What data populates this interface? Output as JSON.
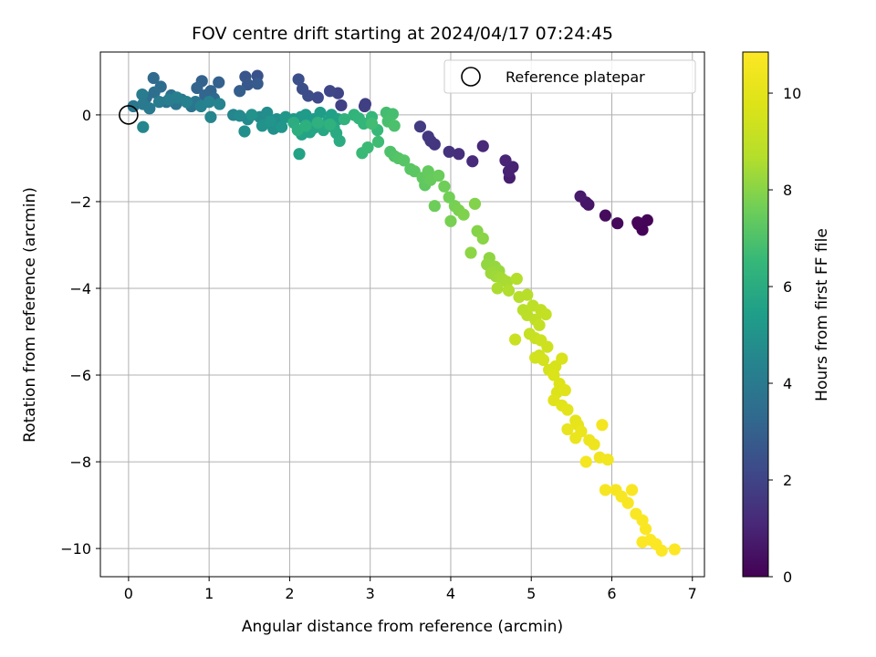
{
  "chart_data": {
    "type": "scatter",
    "title": "FOV centre drift starting at 2024/04/17 07:24:45",
    "xlabel": "Angular distance from reference (arcmin)",
    "ylabel": "Rotation from reference (arcmin)",
    "xlim": [
      -0.35,
      7.15
    ],
    "ylim": [
      -10.65,
      1.45
    ],
    "xticks": [
      0,
      1,
      2,
      3,
      4,
      5,
      6,
      7
    ],
    "yticks": [
      0,
      -2,
      -4,
      -6,
      -8,
      -10
    ],
    "grid": true,
    "legend": {
      "position": "top-right",
      "entries": [
        "Reference platepar"
      ]
    },
    "reference_point": {
      "x": 0,
      "y": 0
    },
    "colorbar": {
      "label": "Hours from first FF file",
      "range": [
        0,
        10.85
      ],
      "ticks": [
        0,
        2,
        4,
        6,
        8,
        10
      ],
      "colormap": "viridis"
    },
    "series": [
      {
        "points": [
          [
            6.33,
            -2.52,
            0.0
          ],
          [
            6.38,
            -2.65,
            0.05
          ],
          [
            6.44,
            -2.43,
            0.1
          ],
          [
            6.32,
            -2.48,
            0.15
          ],
          [
            6.07,
            -2.5,
            0.2
          ],
          [
            5.92,
            -2.32,
            0.3
          ],
          [
            5.71,
            -2.07,
            0.5
          ],
          [
            5.68,
            -2.02,
            0.6
          ],
          [
            5.61,
            -1.88,
            0.7
          ],
          [
            4.73,
            -1.45,
            0.8
          ],
          [
            4.77,
            -1.2,
            0.9
          ],
          [
            4.72,
            -1.3,
            0.95
          ],
          [
            4.68,
            -1.05,
            1.0
          ],
          [
            4.4,
            -0.72,
            1.1
          ],
          [
            4.27,
            -1.07,
            1.2
          ],
          [
            4.1,
            -0.9,
            1.3
          ],
          [
            3.98,
            -0.85,
            1.4
          ],
          [
            3.8,
            -0.68,
            1.5
          ],
          [
            3.75,
            -0.6,
            1.55
          ],
          [
            3.72,
            -0.5,
            1.6
          ],
          [
            3.62,
            -0.27,
            1.7
          ],
          [
            2.94,
            0.25,
            1.8
          ],
          [
            2.93,
            0.2,
            1.85
          ],
          [
            2.64,
            0.22,
            1.9
          ],
          [
            2.6,
            0.5,
            2.0
          ],
          [
            2.5,
            0.55,
            2.1
          ],
          [
            2.35,
            0.4,
            2.2
          ],
          [
            2.23,
            0.44,
            2.3
          ],
          [
            2.16,
            0.6,
            2.35
          ],
          [
            2.11,
            0.82,
            2.4
          ],
          [
            1.6,
            0.9,
            2.5
          ],
          [
            1.45,
            0.88,
            2.6
          ],
          [
            1.48,
            0.7,
            2.7
          ],
          [
            1.6,
            0.72,
            2.8
          ],
          [
            1.38,
            0.55,
            2.9
          ],
          [
            1.12,
            0.75,
            3.0
          ],
          [
            0.91,
            0.78,
            3.05
          ],
          [
            0.85,
            0.62,
            3.1
          ],
          [
            1.02,
            0.55,
            3.15
          ],
          [
            0.95,
            0.45,
            3.2
          ],
          [
            1.06,
            0.38,
            3.3
          ],
          [
            0.31,
            0.85,
            3.4
          ],
          [
            0.4,
            0.65,
            3.45
          ],
          [
            0.22,
            0.4,
            3.5
          ],
          [
            0.32,
            0.52,
            3.55
          ],
          [
            0.47,
            0.3,
            3.6
          ],
          [
            0.53,
            0.45,
            3.65
          ],
          [
            0.59,
            0.25,
            3.7
          ],
          [
            0.66,
            0.35,
            3.75
          ],
          [
            0.78,
            0.2,
            3.8
          ],
          [
            0.83,
            0.3,
            3.85
          ],
          [
            0.06,
            0.2,
            3.9
          ],
          [
            0.18,
            0.25,
            3.95
          ],
          [
            0.26,
            0.15,
            4.0
          ],
          [
            0.38,
            0.3,
            4.05
          ],
          [
            0.17,
            0.47,
            4.1
          ],
          [
            0.5,
            0.35,
            4.15
          ],
          [
            0.6,
            0.4,
            4.2
          ],
          [
            0.72,
            0.3,
            4.25
          ],
          [
            0.9,
            0.2,
            4.3
          ],
          [
            1.0,
            0.3,
            4.35
          ],
          [
            1.13,
            0.25,
            4.4
          ],
          [
            1.02,
            -0.05,
            4.45
          ],
          [
            1.3,
            0.0,
            4.5
          ],
          [
            0.18,
            -0.28,
            4.55
          ],
          [
            1.48,
            -0.1,
            4.6
          ],
          [
            1.38,
            -0.02,
            4.65
          ],
          [
            1.63,
            -0.05,
            4.7
          ],
          [
            1.72,
            0.05,
            4.75
          ],
          [
            1.84,
            -0.1,
            4.8
          ],
          [
            1.44,
            -0.38,
            4.85
          ],
          [
            1.8,
            -0.32,
            4.9
          ],
          [
            1.53,
            0.0,
            4.95
          ],
          [
            1.66,
            -0.25,
            5.0
          ],
          [
            1.76,
            -0.15,
            5.05
          ],
          [
            1.9,
            -0.28,
            5.1
          ],
          [
            1.95,
            -0.05,
            5.15
          ],
          [
            2.05,
            -0.1,
            5.2
          ],
          [
            2.14,
            -0.05,
            5.25
          ],
          [
            2.2,
            0.0,
            5.3
          ],
          [
            2.3,
            -0.1,
            5.35
          ],
          [
            2.38,
            0.05,
            5.4
          ],
          [
            2.48,
            -0.15,
            5.45
          ],
          [
            2.52,
            0.0,
            5.5
          ],
          [
            2.6,
            -0.1,
            5.55
          ],
          [
            2.12,
            -0.9,
            5.6
          ],
          [
            2.15,
            -0.45,
            5.65
          ],
          [
            2.25,
            -0.4,
            5.7
          ],
          [
            2.3,
            -0.3,
            5.75
          ],
          [
            2.42,
            -0.35,
            5.8
          ],
          [
            2.45,
            -0.25,
            5.85
          ],
          [
            2.55,
            -0.3,
            5.9
          ],
          [
            2.58,
            -0.42,
            5.95
          ],
          [
            2.62,
            -0.6,
            6.0
          ],
          [
            2.05,
            -0.18,
            6.05
          ],
          [
            2.1,
            -0.35,
            6.1
          ],
          [
            2.2,
            -0.25,
            6.15
          ],
          [
            2.35,
            -0.18,
            6.2
          ],
          [
            2.5,
            -0.22,
            6.25
          ],
          [
            2.68,
            -0.1,
            6.3
          ],
          [
            2.8,
            0.0,
            6.35
          ],
          [
            2.86,
            -0.08,
            6.4
          ],
          [
            2.92,
            -0.2,
            6.45
          ],
          [
            3.02,
            -0.05,
            6.5
          ],
          [
            3.09,
            -0.35,
            6.55
          ],
          [
            2.9,
            -0.88,
            6.6
          ],
          [
            2.97,
            -0.75,
            6.65
          ],
          [
            3.1,
            -0.62,
            6.7
          ],
          [
            3.02,
            -0.2,
            6.75
          ],
          [
            3.2,
            0.05,
            6.8
          ],
          [
            3.28,
            0.02,
            6.85
          ],
          [
            3.22,
            -0.15,
            6.9
          ],
          [
            3.3,
            -0.25,
            6.95
          ],
          [
            3.25,
            -0.85,
            7.0
          ],
          [
            3.3,
            -0.95,
            7.05
          ],
          [
            3.35,
            -1.0,
            7.1
          ],
          [
            3.42,
            -1.05,
            7.15
          ],
          [
            3.5,
            -1.25,
            7.2
          ],
          [
            3.55,
            -1.3,
            7.25
          ],
          [
            3.68,
            -1.62,
            7.3
          ],
          [
            3.65,
            -1.45,
            7.35
          ],
          [
            3.72,
            -1.3,
            7.4
          ],
          [
            3.75,
            -1.5,
            7.45
          ],
          [
            3.85,
            -1.4,
            7.5
          ],
          [
            3.8,
            -2.1,
            7.55
          ],
          [
            3.92,
            -1.65,
            7.6
          ],
          [
            3.98,
            -1.9,
            7.65
          ],
          [
            4.05,
            -2.1,
            7.7
          ],
          [
            4.0,
            -2.45,
            7.75
          ],
          [
            4.1,
            -2.2,
            7.8
          ],
          [
            4.16,
            -2.3,
            7.85
          ],
          [
            4.3,
            -2.05,
            7.9
          ],
          [
            4.33,
            -2.68,
            7.95
          ],
          [
            4.4,
            -2.85,
            8.0
          ],
          [
            4.25,
            -3.18,
            8.05
          ],
          [
            4.48,
            -3.3,
            8.1
          ],
          [
            4.45,
            -3.45,
            8.15
          ],
          [
            4.55,
            -3.5,
            8.2
          ],
          [
            4.6,
            -3.6,
            8.25
          ],
          [
            4.5,
            -3.65,
            8.3
          ],
          [
            4.56,
            -3.72,
            8.35
          ],
          [
            4.62,
            -3.75,
            8.4
          ],
          [
            4.65,
            -3.8,
            8.45
          ],
          [
            4.7,
            -3.85,
            8.5
          ],
          [
            4.58,
            -4.0,
            8.55
          ],
          [
            4.72,
            -4.05,
            8.6
          ],
          [
            4.82,
            -3.78,
            8.65
          ],
          [
            4.85,
            -4.2,
            8.7
          ],
          [
            4.95,
            -4.15,
            8.75
          ],
          [
            4.9,
            -4.5,
            8.8
          ],
          [
            4.95,
            -4.62,
            8.85
          ],
          [
            5.02,
            -4.4,
            8.9
          ],
          [
            5.05,
            -4.72,
            8.95
          ],
          [
            5.12,
            -4.5,
            9.0
          ],
          [
            5.1,
            -4.85,
            9.05
          ],
          [
            5.18,
            -4.6,
            9.1
          ],
          [
            4.98,
            -5.05,
            9.15
          ],
          [
            5.05,
            -5.15,
            9.2
          ],
          [
            4.8,
            -5.18,
            9.25
          ],
          [
            5.12,
            -5.2,
            9.3
          ],
          [
            5.2,
            -5.35,
            9.35
          ],
          [
            5.1,
            -5.55,
            9.4
          ],
          [
            5.05,
            -5.6,
            9.45
          ],
          [
            5.15,
            -5.65,
            9.5
          ],
          [
            5.22,
            -5.88,
            9.55
          ],
          [
            5.3,
            -5.8,
            9.6
          ],
          [
            5.38,
            -5.62,
            9.65
          ],
          [
            5.28,
            -6.0,
            9.7
          ],
          [
            5.32,
            -6.4,
            9.75
          ],
          [
            5.35,
            -6.2,
            9.8
          ],
          [
            5.42,
            -6.35,
            9.85
          ],
          [
            5.28,
            -6.58,
            9.9
          ],
          [
            5.38,
            -6.7,
            9.95
          ],
          [
            5.45,
            -6.8,
            10.0
          ],
          [
            5.55,
            -7.05,
            10.05
          ],
          [
            5.58,
            -7.15,
            10.1
          ],
          [
            5.45,
            -7.25,
            10.15
          ],
          [
            5.62,
            -7.3,
            10.2
          ],
          [
            5.55,
            -7.45,
            10.25
          ],
          [
            5.72,
            -7.5,
            10.3
          ],
          [
            5.78,
            -7.6,
            10.35
          ],
          [
            5.85,
            -7.9,
            10.4
          ],
          [
            5.95,
            -7.95,
            10.45
          ],
          [
            5.88,
            -7.15,
            10.5
          ],
          [
            5.68,
            -8.0,
            10.55
          ],
          [
            5.92,
            -8.65,
            10.6
          ],
          [
            6.05,
            -8.65,
            10.62
          ],
          [
            6.12,
            -8.8,
            10.65
          ],
          [
            6.2,
            -8.95,
            10.67
          ],
          [
            6.25,
            -8.65,
            10.7
          ],
          [
            6.3,
            -9.2,
            10.72
          ],
          [
            6.38,
            -9.35,
            10.74
          ],
          [
            6.42,
            -9.55,
            10.76
          ],
          [
            6.38,
            -9.85,
            10.78
          ],
          [
            6.48,
            -9.8,
            10.8
          ],
          [
            6.55,
            -9.9,
            10.82
          ],
          [
            6.62,
            -10.05,
            10.83
          ],
          [
            6.78,
            -10.02,
            10.85
          ]
        ]
      }
    ]
  }
}
